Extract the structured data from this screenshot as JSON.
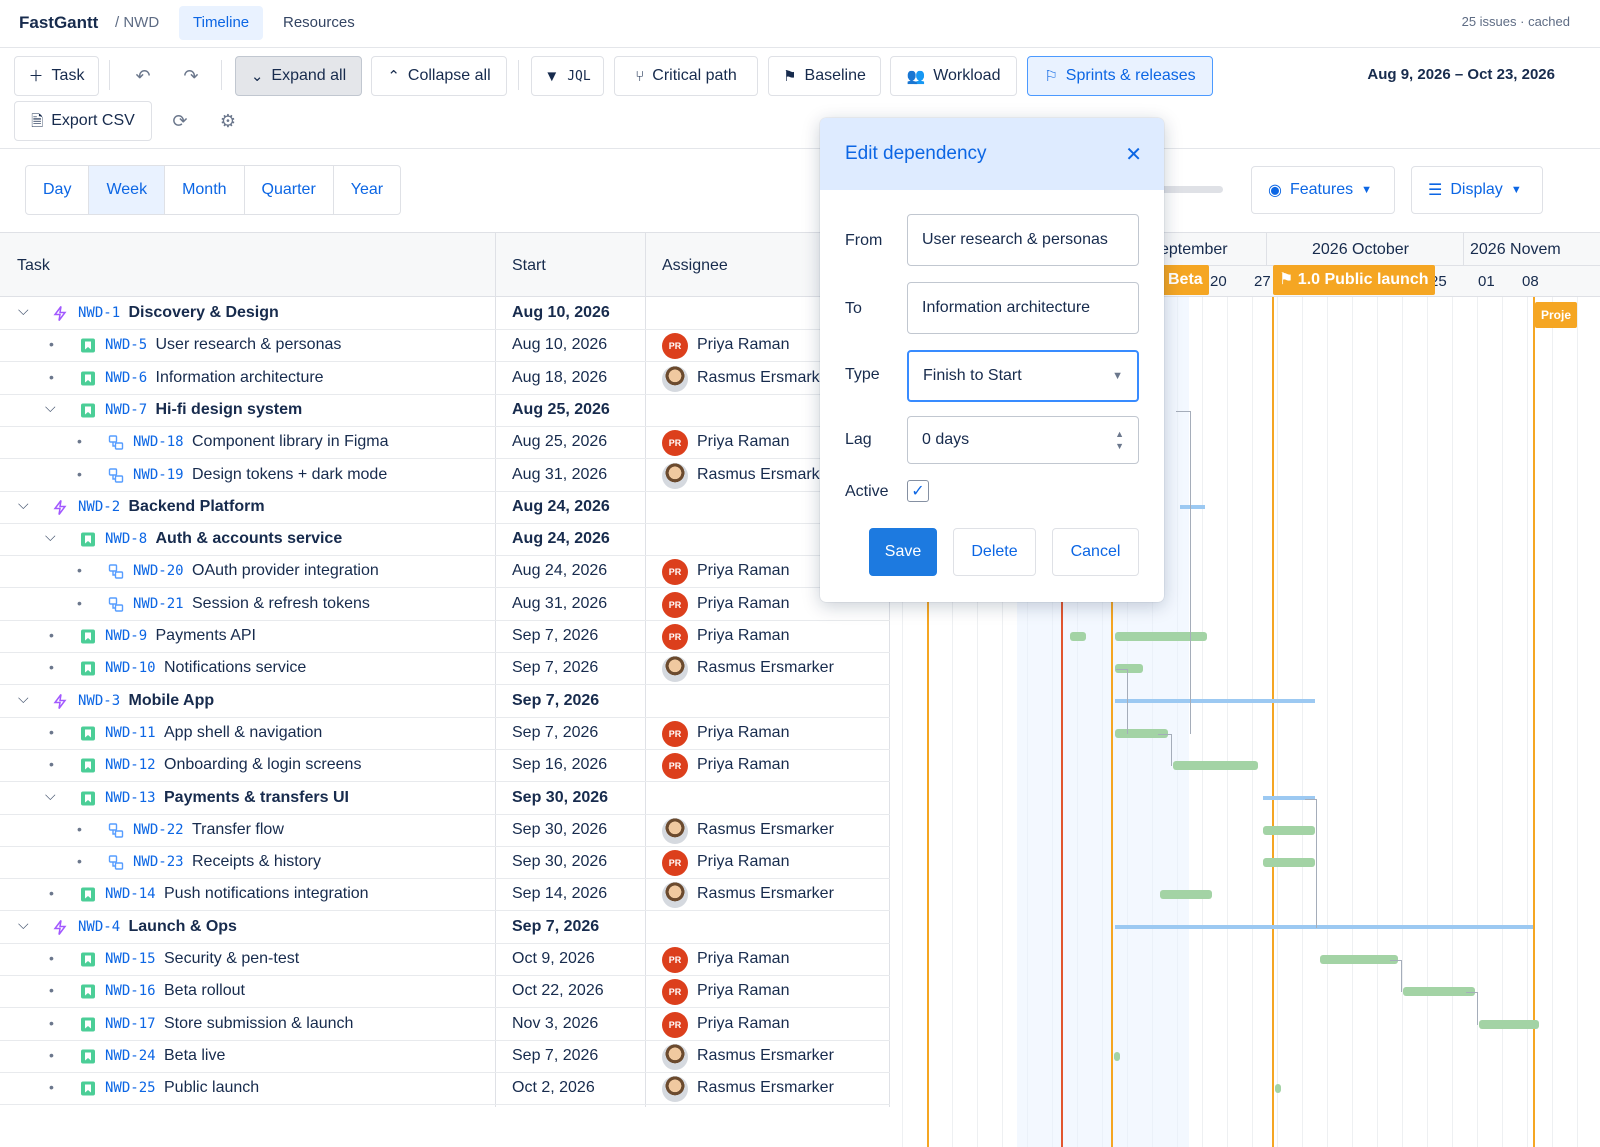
{
  "nav": {
    "brand": "FastGantt",
    "project": "/ NWD",
    "tabs": [
      "Timeline",
      "Resources"
    ],
    "status": "25 issues · cached"
  },
  "toolbar": {
    "task": "Task",
    "expand_all": "Expand all",
    "collapse_all": "Collapse all",
    "jql": "JQL",
    "critical_path": "Critical path",
    "baseline": "Baseline",
    "workload": "Workload",
    "sprints": "Sprints & releases",
    "export_csv": "Export CSV",
    "date_range": "Aug 9, 2026 – Oct 23, 2026"
  },
  "zoom": [
    "Day",
    "Week",
    "Month",
    "Quarter",
    "Year"
  ],
  "zoom_selected": "Week",
  "features": "Features",
  "display": "Display",
  "columns": {
    "task": "Task",
    "start": "Start",
    "assignee": "Assignee"
  },
  "timeline": {
    "months": [
      "eptember",
      "2026 October",
      "2026 Novem"
    ],
    "weeks": [
      "20",
      "27",
      "25",
      "01",
      "08"
    ],
    "milestones": {
      "beta": "Beta",
      "launch": "1.0 Public launch",
      "project": "Proje"
    }
  },
  "rows": [
    {
      "level": 0,
      "type": "epic",
      "key": "NWD-1",
      "name": "Discovery & Design",
      "start": "Aug 10, 2026",
      "assignee": "",
      "av": ""
    },
    {
      "level": 1,
      "type": "story",
      "key": "NWD-5",
      "name": "User research & personas",
      "start": "Aug 10, 2026",
      "assignee": "Priya Raman",
      "av": "PR"
    },
    {
      "level": 1,
      "type": "story",
      "key": "NWD-6",
      "name": "Information architecture",
      "start": "Aug 18, 2026",
      "assignee": "Rasmus Ersmark",
      "av": "RE"
    },
    {
      "level": 1,
      "type": "story",
      "key": "NWD-7",
      "name": "Hi-fi design system",
      "start": "Aug 25, 2026",
      "assignee": "",
      "av": "",
      "parent": true
    },
    {
      "level": 2,
      "type": "sub",
      "key": "NWD-18",
      "name": "Component library in Figma",
      "start": "Aug 25, 2026",
      "assignee": "Priya Raman",
      "av": "PR"
    },
    {
      "level": 2,
      "type": "sub",
      "key": "NWD-19",
      "name": "Design tokens + dark mode",
      "start": "Aug 31, 2026",
      "assignee": "Rasmus Ersmark",
      "av": "RE"
    },
    {
      "level": 0,
      "type": "epic",
      "key": "NWD-2",
      "name": "Backend Platform",
      "start": "Aug 24, 2026",
      "assignee": "",
      "av": ""
    },
    {
      "level": 1,
      "type": "story",
      "key": "NWD-8",
      "name": "Auth & accounts service",
      "start": "Aug 24, 2026",
      "assignee": "",
      "av": "",
      "parent": true
    },
    {
      "level": 2,
      "type": "sub",
      "key": "NWD-20",
      "name": "OAuth provider integration",
      "start": "Aug 24, 2026",
      "assignee": "Priya Raman",
      "av": "PR"
    },
    {
      "level": 2,
      "type": "sub",
      "key": "NWD-21",
      "name": "Session & refresh tokens",
      "start": "Aug 31, 2026",
      "assignee": "Priya Raman",
      "av": "PR"
    },
    {
      "level": 1,
      "type": "story",
      "key": "NWD-9",
      "name": "Payments API",
      "start": "Sep 7, 2026",
      "assignee": "Priya Raman",
      "av": "PR"
    },
    {
      "level": 1,
      "type": "story",
      "key": "NWD-10",
      "name": "Notifications service",
      "start": "Sep 7, 2026",
      "assignee": "Rasmus Ersmarker",
      "av": "RE"
    },
    {
      "level": 0,
      "type": "epic",
      "key": "NWD-3",
      "name": "Mobile App",
      "start": "Sep 7, 2026",
      "assignee": "",
      "av": ""
    },
    {
      "level": 1,
      "type": "story",
      "key": "NWD-11",
      "name": "App shell & navigation",
      "start": "Sep 7, 2026",
      "assignee": "Priya Raman",
      "av": "PR"
    },
    {
      "level": 1,
      "type": "story",
      "key": "NWD-12",
      "name": "Onboarding & login screens",
      "start": "Sep 16, 2026",
      "assignee": "Priya Raman",
      "av": "PR"
    },
    {
      "level": 1,
      "type": "story",
      "key": "NWD-13",
      "name": "Payments & transfers UI",
      "start": "Sep 30, 2026",
      "assignee": "",
      "av": "",
      "parent": true
    },
    {
      "level": 2,
      "type": "sub",
      "key": "NWD-22",
      "name": "Transfer flow",
      "start": "Sep 30, 2026",
      "assignee": "Rasmus Ersmarker",
      "av": "RE"
    },
    {
      "level": 2,
      "type": "sub",
      "key": "NWD-23",
      "name": "Receipts & history",
      "start": "Sep 30, 2026",
      "assignee": "Priya Raman",
      "av": "PR"
    },
    {
      "level": 1,
      "type": "story",
      "key": "NWD-14",
      "name": "Push notifications integration",
      "start": "Sep 14, 2026",
      "assignee": "Rasmus Ersmarker",
      "av": "RE"
    },
    {
      "level": 0,
      "type": "epic",
      "key": "NWD-4",
      "name": "Launch & Ops",
      "start": "Sep 7, 2026",
      "assignee": "",
      "av": ""
    },
    {
      "level": 1,
      "type": "story",
      "key": "NWD-15",
      "name": "Security & pen-test",
      "start": "Oct 9, 2026",
      "assignee": "Priya Raman",
      "av": "PR"
    },
    {
      "level": 1,
      "type": "story",
      "key": "NWD-16",
      "name": "Beta rollout",
      "start": "Oct 22, 2026",
      "assignee": "Priya Raman",
      "av": "PR"
    },
    {
      "level": 1,
      "type": "story",
      "key": "NWD-17",
      "name": "Store submission & launch",
      "start": "Nov 3, 2026",
      "assignee": "Priya Raman",
      "av": "PR"
    },
    {
      "level": 1,
      "type": "story",
      "key": "NWD-24",
      "name": "Beta live",
      "start": "Sep 7, 2026",
      "assignee": "Rasmus Ersmarker",
      "av": "RE"
    },
    {
      "level": 1,
      "type": "story",
      "key": "NWD-25",
      "name": "Public launch",
      "start": "Oct 2, 2026",
      "assignee": "Rasmus Ersmarker",
      "av": "RE"
    }
  ],
  "dialog": {
    "title": "Edit dependency",
    "from_label": "From",
    "from_value": "User research & personas",
    "to_label": "To",
    "to_value": "Information architecture",
    "type_label": "Type",
    "type_value": "Finish to Start",
    "lag_label": "Lag",
    "lag_value": "0 days",
    "active_label": "Active",
    "active": true,
    "save": "Save",
    "delete": "Delete",
    "cancel": "Cancel"
  },
  "colors": {
    "accent": "#0c66e4",
    "milestone": "#f5a623",
    "today": "#e2562f",
    "bar": "#a3d3a5",
    "parent_bar": "#9cc9f2"
  }
}
